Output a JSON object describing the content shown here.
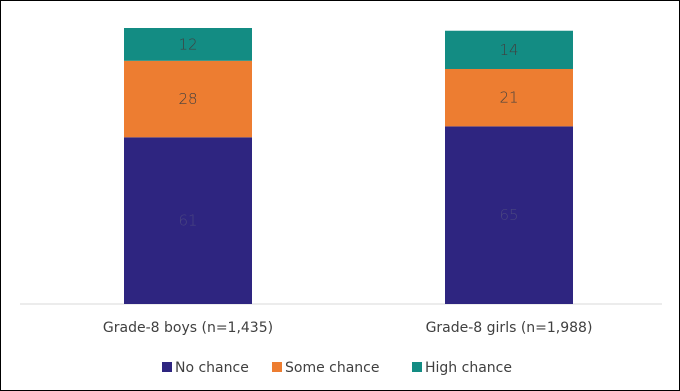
{
  "chart_data": {
    "type": "bar",
    "stacked": true,
    "categories": [
      "Grade-8 boys (n=1,435)",
      "Grade-8 girls (n=1,988)"
    ],
    "series": [
      {
        "name": "No chance",
        "values": [
          61,
          65
        ],
        "color": "#2e2580"
      },
      {
        "name": "Some chance",
        "values": [
          28,
          21
        ],
        "color": "#ed7d31"
      },
      {
        "name": "High chance",
        "values": [
          12,
          14
        ],
        "color": "#138c83"
      }
    ],
    "label_colors": [
      "#4a4680",
      "#404040",
      "#404040"
    ],
    "ylim": [
      0,
      101
    ],
    "grid": false,
    "legend_position": "bottom",
    "title": "",
    "xlabel": "",
    "ylabel": ""
  }
}
